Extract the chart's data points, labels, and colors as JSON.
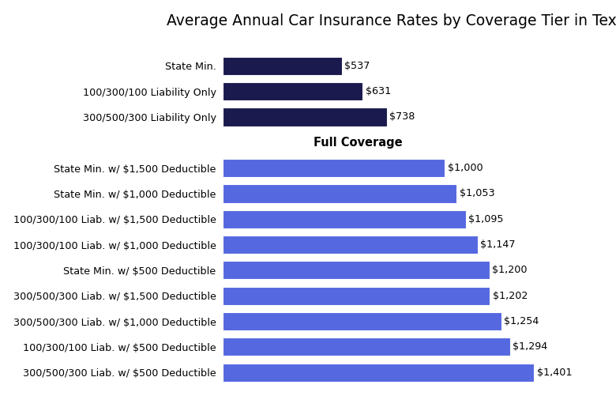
{
  "title": "Average Annual Car Insurance Rates by Coverage Tier in Texas",
  "categories": [
    "300/500/300 Liab. w/ $500 Deductible",
    "100/300/100 Liab. w/ $500 Deductible",
    "300/500/300 Liab. w/ $1,000 Deductible",
    "300/500/300 Liab. w/ $1,500 Deductible",
    "State Min. w/ $500 Deductible",
    "100/300/100 Liab. w/ $1,000 Deductible",
    "100/300/100 Liab. w/ $1,500 Deductible",
    "State Min. w/ $1,000 Deductible",
    "State Min. w/ $1,500 Deductible",
    "FULL_COVERAGE_LABEL",
    "300/500/300 Liability Only",
    "100/300/100 Liability Only",
    "State Min."
  ],
  "values": [
    1401,
    1294,
    1254,
    1202,
    1200,
    1147,
    1095,
    1053,
    1000,
    0,
    738,
    631,
    537
  ],
  "labels": [
    "$1,401",
    "$1,294",
    "$1,254",
    "$1,202",
    "$1,200",
    "$1,147",
    "$1,095",
    "$1,053",
    "$1,000",
    "",
    "$738",
    "$631",
    "$537"
  ],
  "bar_color_full": "#5568e0",
  "bar_color_dark": "#1a1a4e",
  "full_coverage_row_index": 9,
  "dark_indices": [
    10,
    11,
    12
  ],
  "background_color": "#ffffff",
  "title_fontsize": 13.5,
  "label_fontsize": 9.2,
  "value_fontsize": 9.2,
  "full_coverage_label_text": "Full Coverage",
  "full_coverage_label_fontsize": 10.5
}
